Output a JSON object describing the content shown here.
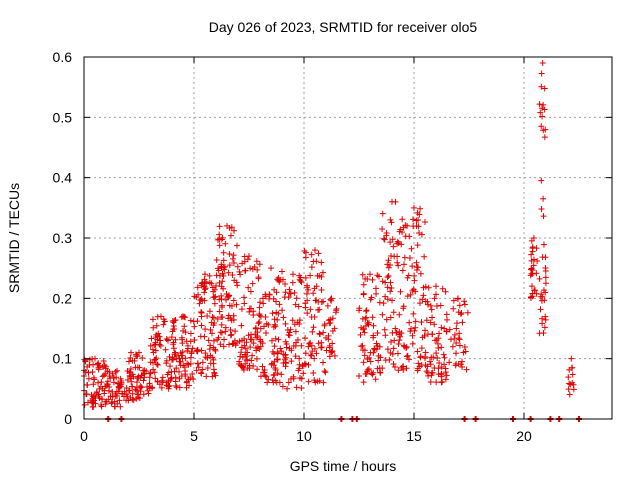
{
  "chart_data": {
    "type": "scatter",
    "title": "Day 026 of 2023, SRMTID for receiver olo5",
    "xlabel": "GPS time / hours",
    "ylabel": "SRMTID / TECUs",
    "xlim": [
      0,
      24
    ],
    "ylim": [
      0,
      0.6
    ],
    "x_ticks": [
      0,
      5,
      10,
      15,
      20
    ],
    "x_tick_labels": [
      "0",
      "5",
      "10",
      "15",
      "20"
    ],
    "y_ticks": [
      0,
      0.1,
      0.2,
      0.3,
      0.4,
      0.5,
      0.6
    ],
    "y_tick_labels": [
      "0",
      "0.1",
      "0.2",
      "0.3",
      "0.4",
      "0.5",
      "0.6"
    ],
    "grid": true,
    "marker": "plus",
    "series": [
      {
        "name": "SRMTID",
        "color": "#e00000",
        "envelope": [
          {
            "x_start": 0.0,
            "x_end": 1.0,
            "y_min": 0.02,
            "y_max": 0.1,
            "n": 70
          },
          {
            "x_start": 1.0,
            "x_end": 2.0,
            "y_min": 0.02,
            "y_max": 0.08,
            "n": 55
          },
          {
            "x_start": 2.0,
            "x_end": 3.0,
            "y_min": 0.03,
            "y_max": 0.11,
            "n": 65
          },
          {
            "x_start": 3.0,
            "x_end": 4.0,
            "y_min": 0.05,
            "y_max": 0.17,
            "n": 70
          },
          {
            "x_start": 4.0,
            "x_end": 5.0,
            "y_min": 0.05,
            "y_max": 0.17,
            "n": 75
          },
          {
            "x_start": 5.0,
            "x_end": 6.0,
            "y_min": 0.07,
            "y_max": 0.24,
            "n": 85
          },
          {
            "x_start": 6.0,
            "x_end": 7.0,
            "y_min": 0.12,
            "y_max": 0.32,
            "n": 90
          },
          {
            "x_start": 7.0,
            "x_end": 8.0,
            "y_min": 0.08,
            "y_max": 0.27,
            "n": 80
          },
          {
            "x_start": 8.0,
            "x_end": 9.0,
            "y_min": 0.06,
            "y_max": 0.25,
            "n": 75
          },
          {
            "x_start": 9.0,
            "x_end": 10.0,
            "y_min": 0.05,
            "y_max": 0.24,
            "n": 70
          },
          {
            "x_start": 10.0,
            "x_end": 11.0,
            "y_min": 0.06,
            "y_max": 0.28,
            "n": 75
          },
          {
            "x_start": 11.0,
            "x_end": 11.5,
            "y_min": 0.1,
            "y_max": 0.2,
            "n": 25
          },
          {
            "x_start": 12.5,
            "x_end": 13.5,
            "y_min": 0.06,
            "y_max": 0.24,
            "n": 70
          },
          {
            "x_start": 13.5,
            "x_end": 14.5,
            "y_min": 0.08,
            "y_max": 0.36,
            "n": 75
          },
          {
            "x_start": 14.5,
            "x_end": 15.5,
            "y_min": 0.08,
            "y_max": 0.35,
            "n": 75
          },
          {
            "x_start": 15.5,
            "x_end": 16.5,
            "y_min": 0.06,
            "y_max": 0.22,
            "n": 70
          },
          {
            "x_start": 16.5,
            "x_end": 17.5,
            "y_min": 0.08,
            "y_max": 0.2,
            "n": 35
          },
          {
            "x_start": 20.3,
            "x_end": 20.6,
            "y_min": 0.2,
            "y_max": 0.3,
            "n": 25
          },
          {
            "x_start": 20.7,
            "x_end": 21.0,
            "y_min": 0.13,
            "y_max": 0.59,
            "n": 40
          },
          {
            "x_start": 22.0,
            "x_end": 22.3,
            "y_min": 0.04,
            "y_max": 0.1,
            "n": 12
          }
        ],
        "zero_points_x": [
          1.1,
          1.7,
          11.7,
          12.2,
          12.4,
          17.3,
          17.8,
          19.5,
          20.3,
          21.2,
          21.6,
          22.5
        ]
      }
    ]
  }
}
